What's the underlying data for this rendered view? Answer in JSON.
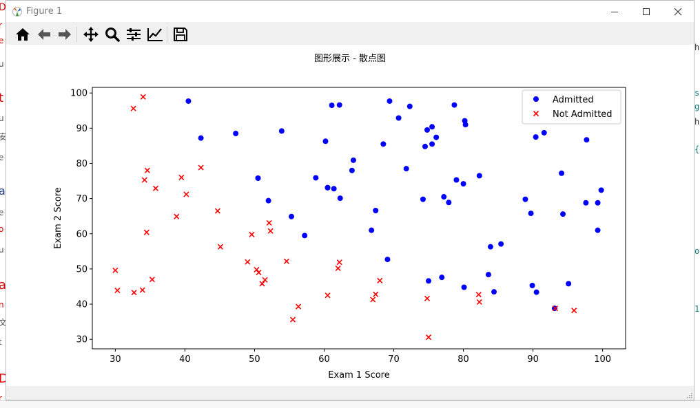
{
  "window": {
    "title": "Figure 1",
    "minimize_glyph": "—",
    "maximize_glyph": "□",
    "close_glyph": "✕"
  },
  "toolbar": {
    "items": [
      {
        "name": "home-icon",
        "label": "Home"
      },
      {
        "name": "back-icon",
        "label": "Back"
      },
      {
        "name": "forward-icon",
        "label": "Forward"
      },
      {
        "name": "pan-icon",
        "label": "Pan"
      },
      {
        "name": "zoom-icon",
        "label": "Zoom"
      },
      {
        "name": "subplots-icon",
        "label": "Subplots"
      },
      {
        "name": "customize-icon",
        "label": "Customize"
      },
      {
        "name": "save-icon",
        "label": "Save"
      }
    ]
  },
  "colors": {
    "admitted": "#0000ff",
    "not_admitted": "#ff0000",
    "accent": "#000000"
  },
  "chart_data": {
    "type": "scatter",
    "title": "图形展示 - 散点图",
    "xlabel": "Exam 1 Score",
    "ylabel": "Exam 2 Score",
    "xlim": [
      26.7,
      103.3
    ],
    "ylim": [
      27.3,
      101.6
    ],
    "xticks": [
      30,
      40,
      50,
      60,
      70,
      80,
      90,
      100
    ],
    "yticks": [
      30,
      40,
      50,
      60,
      70,
      80,
      90,
      100
    ],
    "grid": false,
    "legend_position": "top-right",
    "series": [
      {
        "name": "Admitted",
        "marker": "o",
        "color": "#0000ff",
        "points": [
          [
            60.2,
            86.3
          ],
          [
            79.0,
            75.3
          ],
          [
            61.1,
            96.5
          ],
          [
            75.0,
            46.6
          ],
          [
            76.1,
            87.4
          ],
          [
            84.4,
            43.5
          ],
          [
            82.3,
            76.5
          ],
          [
            69.4,
            97.7
          ],
          [
            53.9,
            89.2
          ],
          [
            69.1,
            52.7
          ],
          [
            70.7,
            92.9
          ],
          [
            76.9,
            47.6
          ],
          [
            67.4,
            66.6
          ],
          [
            89.7,
            65.8
          ],
          [
            50.5,
            75.8
          ],
          [
            89.9,
            45.3
          ],
          [
            80.2,
            92.1
          ],
          [
            99.3,
            68.8
          ],
          [
            74.8,
            89.5
          ],
          [
            95.1,
            45.8
          ],
          [
            90.4,
            87.5
          ],
          [
            77.9,
            68.9
          ],
          [
            61.4,
            72.8
          ],
          [
            85.4,
            57.1
          ],
          [
            93.1,
            38.8
          ],
          [
            90.5,
            43.4
          ],
          [
            64.0,
            78.0
          ],
          [
            62.3,
            70.1
          ],
          [
            60.5,
            73.1
          ],
          [
            94.3,
            65.6
          ],
          [
            88.9,
            69.8
          ],
          [
            97.7,
            86.7
          ],
          [
            99.8,
            72.4
          ],
          [
            47.3,
            88.5
          ],
          [
            50.5,
            75.8
          ],
          [
            60.5,
            73.1
          ],
          [
            99.3,
            61.0
          ],
          [
            55.3,
            64.9
          ],
          [
            74.5,
            84.8
          ],
          [
            64.2,
            80.9
          ],
          [
            40.5,
            97.7
          ],
          [
            80.3,
            91.0
          ],
          [
            78.7,
            96.6
          ],
          [
            58.8,
            75.9
          ],
          [
            74.2,
            69.8
          ],
          [
            77.2,
            70.5
          ],
          [
            62.2,
            96.6
          ],
          [
            72.3,
            96.2
          ],
          [
            68.5,
            85.5
          ],
          [
            97.6,
            68.8
          ],
          [
            91.6,
            88.7
          ],
          [
            80.1,
            44.8
          ],
          [
            83.6,
            48.4
          ],
          [
            42.3,
            87.2
          ],
          [
            75.5,
            90.4
          ],
          [
            94.1,
            77.2
          ],
          [
            52.0,
            69.4
          ],
          [
            57.2,
            59.5
          ],
          [
            66.8,
            61.0
          ],
          [
            75.5,
            85.5
          ],
          [
            80.0,
            74.2
          ],
          [
            71.8,
            78.5
          ],
          [
            83.9,
            56.3
          ]
        ]
      },
      {
        "name": "Not Admitted",
        "marker": "x",
        "color": "#ff0000",
        "points": [
          [
            34.6,
            78.0
          ],
          [
            30.3,
            43.9
          ],
          [
            35.8,
            72.9
          ],
          [
            45.1,
            56.3
          ],
          [
            95.9,
            38.2
          ],
          [
            75.0,
            30.6
          ],
          [
            39.5,
            76.0
          ],
          [
            30.0,
            49.6
          ],
          [
            49.0,
            52.0
          ],
          [
            34.2,
            75.3
          ],
          [
            34.0,
            98.9
          ],
          [
            32.6,
            95.6
          ],
          [
            42.3,
            78.8
          ],
          [
            52.3,
            60.8
          ],
          [
            51.5,
            46.9
          ],
          [
            44.7,
            66.5
          ],
          [
            40.2,
            71.2
          ],
          [
            52.1,
            63.1
          ],
          [
            38.8,
            64.9
          ],
          [
            34.5,
            60.4
          ],
          [
            50.3,
            49.8
          ],
          [
            49.6,
            59.8
          ],
          [
            50.6,
            49.0
          ],
          [
            33.9,
            44.0
          ],
          [
            32.7,
            43.3
          ],
          [
            35.3,
            47.0
          ],
          [
            51.1,
            45.8
          ],
          [
            55.5,
            35.6
          ],
          [
            56.3,
            39.3
          ],
          [
            62.0,
            50.2
          ],
          [
            67.0,
            41.3
          ],
          [
            67.4,
            42.8
          ],
          [
            60.5,
            42.5
          ],
          [
            68.0,
            46.7
          ],
          [
            82.2,
            42.7
          ],
          [
            82.3,
            40.6
          ],
          [
            74.8,
            41.6
          ],
          [
            62.2,
            51.9
          ],
          [
            54.6,
            52.2
          ],
          [
            93.2,
            38.8
          ]
        ]
      }
    ]
  }
}
